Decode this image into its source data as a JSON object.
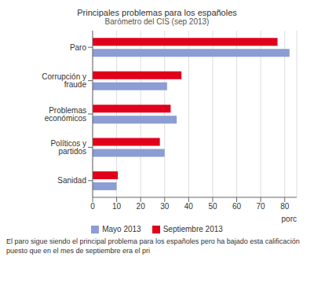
{
  "chart_data": {
    "type": "bar",
    "title": "Principales problemas para los españoles",
    "subtitle": "Barómetro del CIS (sep 2013)",
    "orientation": "horizontal",
    "categories": [
      "Paro",
      "Corrupción y fraude",
      "Problemas económicos",
      "Políticos y partidos",
      "Sanidad"
    ],
    "series": [
      {
        "name": "Mayo 2013",
        "color": "#8b9dd3",
        "values": [
          82,
          31,
          35,
          30,
          10
        ]
      },
      {
        "name": "Septiembre 2013",
        "color": "#e0001b",
        "values": [
          77,
          37,
          32.5,
          28,
          10.5
        ]
      }
    ],
    "xlim": [
      0,
      85
    ],
    "xticks": [
      0,
      10,
      20,
      30,
      40,
      50,
      60,
      70,
      80
    ],
    "xlabel": "porc",
    "grid": true,
    "legend": "bottom",
    "annotations": [
      "El paro sigue siendo el principal problema para los españoles pero ha bajado esta calificación puesto que en el mes de septiembre era el pri"
    ]
  }
}
